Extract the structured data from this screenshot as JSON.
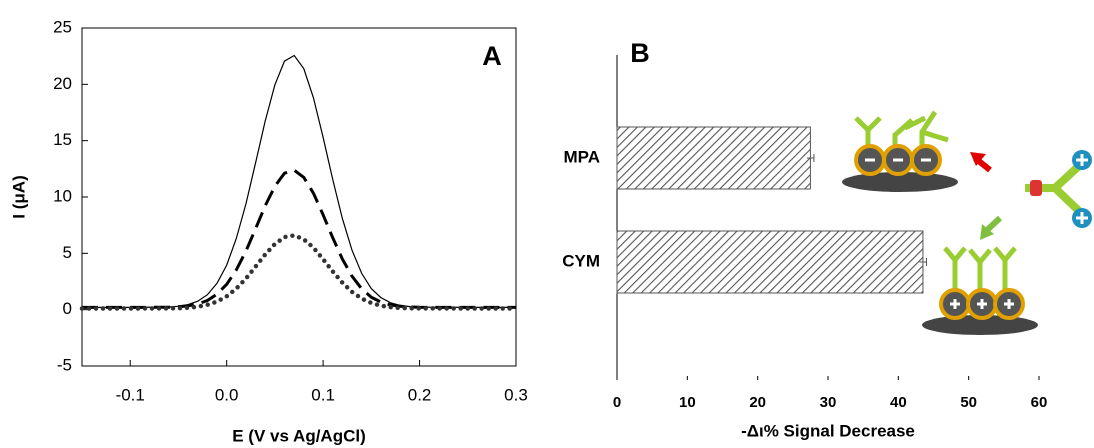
{
  "chart_data": [
    {
      "type": "line",
      "label": "A",
      "xlabel": "E (V vs Ag/AgCl)",
      "ylabel": "I (μA)",
      "xlim": [
        -0.15,
        0.3
      ],
      "xticks": [
        -0.1,
        {
          "value": 0,
          "label": "0.0"
        },
        0.1,
        0.2,
        0.3
      ],
      "ylim": [
        -5,
        25
      ],
      "yticks": [
        -5,
        0,
        5,
        10,
        15,
        20,
        25
      ],
      "x": [
        -0.15,
        -0.1,
        -0.06,
        -0.05,
        -0.04,
        -0.03,
        -0.02,
        -0.01,
        0,
        0.01,
        0.02,
        0.03,
        0.04,
        0.05,
        0.06,
        0.07,
        0.08,
        0.09,
        0.1,
        0.11,
        0.12,
        0.13,
        0.14,
        0.15,
        0.16,
        0.17,
        0.18,
        0.19,
        0.2,
        0.25,
        0.3
      ],
      "series": [
        {
          "color": "#000000",
          "dash": "solid",
          "values": [
            0.2,
            0.2,
            0.24,
            0.3,
            0.45,
            0.75,
            1.33,
            2.34,
            3.96,
            6.32,
            9.41,
            13.04,
            16.75,
            19.96,
            22.06,
            22.56,
            21.39,
            18.79,
            15.3,
            11.53,
            8.08,
            5.28,
            3.22,
            1.87,
            1.06,
            0.61,
            0.38,
            0.27,
            0.23,
            0.2,
            0.2
          ]
        },
        {
          "color": "#000000",
          "dash": "dashed",
          "values": [
            0.2,
            0.2,
            0.22,
            0.26,
            0.34,
            0.5,
            0.81,
            1.37,
            2.25,
            3.53,
            5.21,
            7.19,
            9.22,
            10.96,
            12.11,
            12.38,
            11.74,
            10.33,
            8.42,
            6.37,
            4.49,
            2.97,
            1.85,
            1.11,
            0.67,
            0.42,
            0.3,
            0.24,
            0.21,
            0.2,
            0.2
          ]
        },
        {
          "color": "#333333",
          "dash": "dotted",
          "values": [
            0.1,
            0.1,
            0.11,
            0.13,
            0.17,
            0.26,
            0.43,
            0.72,
            1.19,
            1.87,
            2.77,
            3.82,
            4.9,
            5.83,
            6.44,
            6.59,
            6.25,
            5.5,
            4.48,
            3.39,
            2.39,
            1.58,
            0.98,
            0.59,
            0.35,
            0.22,
            0.15,
            0.12,
            0.11,
            0.1,
            0.1
          ]
        }
      ]
    },
    {
      "type": "hbar",
      "label": "B",
      "xlabel": "-Δι% Signal Decrease",
      "categories": [
        "MPA",
        "CYM"
      ],
      "values": [
        27.5,
        43.5
      ],
      "errors": [
        0.5,
        0.5
      ],
      "color": "#555555",
      "xlim": [
        0,
        60
      ],
      "xticks": [
        0,
        10,
        20,
        30,
        40,
        50,
        60
      ]
    }
  ]
}
